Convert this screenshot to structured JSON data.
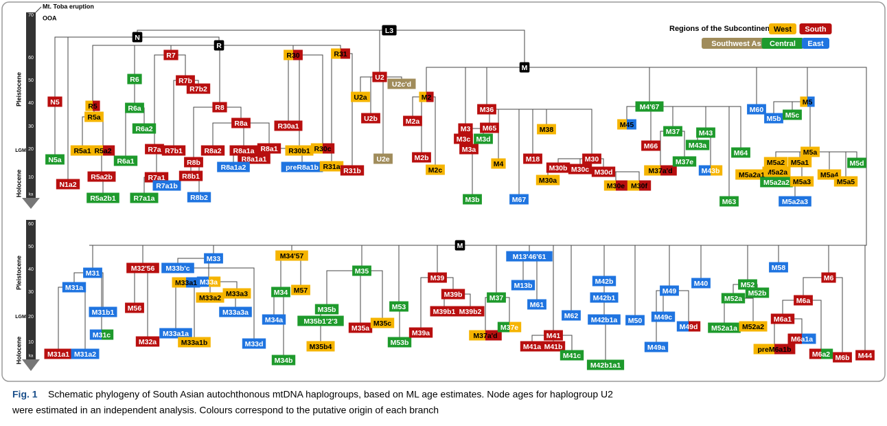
{
  "legend": {
    "title": "Regions of the Subcontinent:",
    "root_color": "#000000",
    "regions": [
      {
        "name": "West",
        "color": "#f5b400",
        "text_color": "#000000"
      },
      {
        "name": "South",
        "color": "#b80f0f",
        "text_color": "#ffffff"
      },
      {
        "name": "Southwest Asia",
        "color": "#a08c5b",
        "text_color": "#ffffff"
      },
      {
        "name": "Central",
        "color": "#1e9a2c",
        "text_color": "#ffffff"
      },
      {
        "name": "East",
        "color": "#1f74e0",
        "text_color": "#ffffff"
      }
    ]
  },
  "axis": {
    "events": [
      "Mt. Toba eruption",
      "OOA"
    ],
    "periods": [
      "Pleistocene",
      "LGM",
      "Holocene"
    ],
    "unit": "ka",
    "top_ticks": [
      70,
      60,
      50,
      40,
      30,
      20,
      10
    ],
    "bottom_ticks": [
      60,
      50,
      40,
      30,
      20,
      10
    ]
  },
  "nodes": [
    {
      "label": "L3",
      "regions": []
    },
    {
      "label": "N",
      "regions": []
    },
    {
      "label": "R",
      "regions": []
    },
    {
      "label": "M",
      "regions": []
    },
    {
      "label": "N5",
      "regions": [
        "South"
      ]
    },
    {
      "label": "N5a",
      "regions": [
        "Central"
      ]
    },
    {
      "label": "N1a2",
      "regions": [
        "South"
      ]
    },
    {
      "label": "R5",
      "regions": [
        "West",
        "South"
      ]
    },
    {
      "label": "R5a",
      "regions": [
        "West"
      ]
    },
    {
      "label": "R5a1",
      "regions": [
        "West"
      ]
    },
    {
      "label": "R5a2",
      "regions": [
        "West",
        "South"
      ]
    },
    {
      "label": "R5a2b",
      "regions": [
        "South"
      ]
    },
    {
      "label": "R5a2b1",
      "regions": [
        "Central"
      ]
    },
    {
      "label": "R6",
      "regions": [
        "Central"
      ]
    },
    {
      "label": "R6a",
      "regions": [
        "Central"
      ]
    },
    {
      "label": "R6a2",
      "regions": [
        "Central"
      ]
    },
    {
      "label": "R6a1",
      "regions": [
        "Central"
      ]
    },
    {
      "label": "R7",
      "regions": [
        "South"
      ]
    },
    {
      "label": "R7b",
      "regions": [
        "South"
      ]
    },
    {
      "label": "R7b2",
      "regions": [
        "South"
      ]
    },
    {
      "label": "R7a",
      "regions": [
        "South"
      ]
    },
    {
      "label": "R7b1",
      "regions": [
        "South"
      ]
    },
    {
      "label": "R7a1",
      "regions": [
        "South"
      ]
    },
    {
      "label": "R7a1b",
      "regions": [
        "East"
      ]
    },
    {
      "label": "R7a1a",
      "regions": [
        "Central"
      ]
    },
    {
      "label": "R8",
      "regions": [
        "South"
      ]
    },
    {
      "label": "R8a",
      "regions": [
        "South"
      ]
    },
    {
      "label": "R8a2",
      "regions": [
        "South"
      ]
    },
    {
      "label": "R8b",
      "regions": [
        "South"
      ]
    },
    {
      "label": "R8b1",
      "regions": [
        "South"
      ]
    },
    {
      "label": "R8b2",
      "regions": [
        "East"
      ]
    },
    {
      "label": "R8a1a",
      "regions": [
        "South"
      ]
    },
    {
      "label": "R8a1a1",
      "regions": [
        "South"
      ]
    },
    {
      "label": "R8a1",
      "regions": [
        "South"
      ]
    },
    {
      "label": "R8a1a2",
      "regions": [
        "East"
      ]
    },
    {
      "label": "preR8a1b",
      "regions": [
        "East"
      ]
    },
    {
      "label": "R30",
      "regions": [
        "West",
        "South"
      ]
    },
    {
      "label": "R30a1",
      "regions": [
        "South"
      ]
    },
    {
      "label": "R30b1",
      "regions": [
        "West"
      ]
    },
    {
      "label": "R30c",
      "regions": [
        "West",
        "South"
      ]
    },
    {
      "label": "R31",
      "regions": [
        "West",
        "South"
      ]
    },
    {
      "label": "R31a",
      "regions": [
        "West"
      ]
    },
    {
      "label": "R31b",
      "regions": [
        "South"
      ]
    },
    {
      "label": "U2",
      "regions": [
        "South"
      ]
    },
    {
      "label": "U2c'd",
      "regions": [
        "Southwest Asia"
      ]
    },
    {
      "label": "U2a",
      "regions": [
        "West"
      ]
    },
    {
      "label": "U2b",
      "regions": [
        "South"
      ]
    },
    {
      "label": "U2e",
      "regions": [
        "Southwest Asia"
      ]
    },
    {
      "label": "M2",
      "regions": [
        "West",
        "South"
      ]
    },
    {
      "label": "M2a",
      "regions": [
        "South"
      ]
    },
    {
      "label": "M2b",
      "regions": [
        "South"
      ]
    },
    {
      "label": "M2c",
      "regions": [
        "West"
      ]
    },
    {
      "label": "M36",
      "regions": [
        "South"
      ]
    },
    {
      "label": "M3",
      "regions": [
        "South"
      ]
    },
    {
      "label": "M3c",
      "regions": [
        "South"
      ]
    },
    {
      "label": "M3d",
      "regions": [
        "Central"
      ]
    },
    {
      "label": "M3a",
      "regions": [
        "South"
      ]
    },
    {
      "label": "M3b",
      "regions": [
        "Central"
      ]
    },
    {
      "label": "M65",
      "regions": [
        "South"
      ]
    },
    {
      "label": "M38",
      "regions": [
        "West"
      ]
    },
    {
      "label": "M4",
      "regions": [
        "West"
      ]
    },
    {
      "label": "M18",
      "regions": [
        "South"
      ]
    },
    {
      "label": "M67",
      "regions": [
        "East"
      ]
    },
    {
      "label": "M30",
      "regions": [
        "South"
      ]
    },
    {
      "label": "M30b",
      "regions": [
        "South"
      ]
    },
    {
      "label": "M30c",
      "regions": [
        "South"
      ]
    },
    {
      "label": "M30d",
      "regions": [
        "South"
      ]
    },
    {
      "label": "M30a",
      "regions": [
        "West"
      ]
    },
    {
      "label": "M30e",
      "regions": [
        "West",
        "South"
      ]
    },
    {
      "label": "M30f",
      "regions": [
        "West",
        "South"
      ]
    },
    {
      "label": "M4'67",
      "regions": [
        "Central"
      ]
    },
    {
      "label": "M45",
      "regions": [
        "West",
        "East"
      ]
    },
    {
      "label": "M37",
      "regions": [
        "Central"
      ]
    },
    {
      "label": "M66",
      "regions": [
        "South"
      ]
    },
    {
      "label": "M37a'd",
      "regions": [
        "West",
        "South"
      ]
    },
    {
      "label": "M37e",
      "regions": [
        "Central"
      ]
    },
    {
      "label": "M43",
      "regions": [
        "Central"
      ]
    },
    {
      "label": "M43a",
      "regions": [
        "Central"
      ]
    },
    {
      "label": "M43b",
      "regions": [
        "East",
        "West"
      ]
    },
    {
      "label": "M64",
      "regions": [
        "Central"
      ]
    },
    {
      "label": "M63",
      "regions": [
        "Central"
      ]
    },
    {
      "label": "M60",
      "regions": [
        "East"
      ]
    },
    {
      "label": "M5",
      "regions": [
        "West",
        "East"
      ]
    },
    {
      "label": "M5b",
      "regions": [
        "East"
      ]
    },
    {
      "label": "M5c",
      "regions": [
        "Central"
      ]
    },
    {
      "label": "M5a",
      "regions": [
        "West"
      ]
    },
    {
      "label": "M5a2",
      "regions": [
        "West"
      ]
    },
    {
      "label": "M5a1",
      "regions": [
        "West"
      ]
    },
    {
      "label": "M5a2a",
      "regions": [
        "West"
      ]
    },
    {
      "label": "M5a2a1",
      "regions": [
        "West"
      ]
    },
    {
      "label": "M5a2a2",
      "regions": [
        "Central"
      ]
    },
    {
      "label": "M5a3",
      "regions": [
        "West"
      ]
    },
    {
      "label": "M5a4",
      "regions": [
        "West"
      ]
    },
    {
      "label": "M5a5",
      "regions": [
        "West"
      ]
    },
    {
      "label": "M5d",
      "regions": [
        "Central"
      ]
    },
    {
      "label": "M5a2a3",
      "regions": [
        "East"
      ]
    },
    {
      "label": "M",
      "regions": []
    },
    {
      "label": "M31",
      "regions": [
        "East"
      ]
    },
    {
      "label": "M31a",
      "regions": [
        "East"
      ]
    },
    {
      "label": "M31b1",
      "regions": [
        "East"
      ]
    },
    {
      "label": "M31c",
      "regions": [
        "East",
        "Central"
      ]
    },
    {
      "label": "M31a1",
      "regions": [
        "South"
      ]
    },
    {
      "label": "M31a2",
      "regions": [
        "East"
      ]
    },
    {
      "label": "M32'56",
      "regions": [
        "South"
      ]
    },
    {
      "label": "M56",
      "regions": [
        "South"
      ]
    },
    {
      "label": "M32a",
      "regions": [
        "South"
      ]
    },
    {
      "label": "M33",
      "regions": [
        "East"
      ]
    },
    {
      "label": "M33b'c",
      "regions": [
        "East"
      ]
    },
    {
      "label": "M33a",
      "regions": [
        "East",
        "West"
      ]
    },
    {
      "label": "M33a1",
      "regions": [
        "West",
        "East"
      ]
    },
    {
      "label": "M33a2",
      "regions": [
        "West"
      ]
    },
    {
      "label": "M33a3",
      "regions": [
        "West"
      ]
    },
    {
      "label": "M33a3a",
      "regions": [
        "East"
      ]
    },
    {
      "label": "M33a1a",
      "regions": [
        "East"
      ]
    },
    {
      "label": "M33a1b",
      "regions": [
        "West"
      ]
    },
    {
      "label": "M33d",
      "regions": [
        "East"
      ]
    },
    {
      "label": "M34'57",
      "regions": [
        "West"
      ]
    },
    {
      "label": "M34",
      "regions": [
        "Central"
      ]
    },
    {
      "label": "M57",
      "regions": [
        "West"
      ]
    },
    {
      "label": "M34a",
      "regions": [
        "East"
      ]
    },
    {
      "label": "M34b",
      "regions": [
        "Central"
      ]
    },
    {
      "label": "M35",
      "regions": [
        "Central"
      ]
    },
    {
      "label": "M35b",
      "regions": [
        "Central"
      ]
    },
    {
      "label": "M35b1'2'3",
      "regions": [
        "Central"
      ]
    },
    {
      "label": "M35b4",
      "regions": [
        "West"
      ]
    },
    {
      "label": "M35a",
      "regions": [
        "South"
      ]
    },
    {
      "label": "M35c",
      "regions": [
        "West"
      ]
    },
    {
      "label": "M53",
      "regions": [
        "Central"
      ]
    },
    {
      "label": "M53b",
      "regions": [
        "Central"
      ]
    },
    {
      "label": "M39",
      "regions": [
        "South"
      ]
    },
    {
      "label": "M39b",
      "regions": [
        "South"
      ]
    },
    {
      "label": "M39b1",
      "regions": [
        "South"
      ]
    },
    {
      "label": "M39b2",
      "regions": [
        "South"
      ]
    },
    {
      "label": "M39a",
      "regions": [
        "South"
      ]
    },
    {
      "label": "M37",
      "regions": [
        "Central"
      ]
    },
    {
      "label": "M37a'd",
      "regions": [
        "West",
        "South"
      ]
    },
    {
      "label": "M37e",
      "regions": [
        "Central",
        "West"
      ]
    },
    {
      "label": "M13'46'61",
      "regions": [
        "East"
      ]
    },
    {
      "label": "M13b",
      "regions": [
        "East"
      ]
    },
    {
      "label": "M61",
      "regions": [
        "East"
      ]
    },
    {
      "label": "M62",
      "regions": [
        "East"
      ]
    },
    {
      "label": "M41",
      "regions": [
        "South"
      ]
    },
    {
      "label": "M41a",
      "regions": [
        "South"
      ]
    },
    {
      "label": "M41b",
      "regions": [
        "South"
      ]
    },
    {
      "label": "M41c",
      "regions": [
        "Central"
      ]
    },
    {
      "label": "M42b",
      "regions": [
        "East"
      ]
    },
    {
      "label": "M42b1",
      "regions": [
        "East"
      ]
    },
    {
      "label": "M42b1a",
      "regions": [
        "East"
      ]
    },
    {
      "label": "M42b1a1",
      "regions": [
        "Central"
      ]
    },
    {
      "label": "M50",
      "regions": [
        "East"
      ]
    },
    {
      "label": "M49",
      "regions": [
        "East"
      ]
    },
    {
      "label": "M49c",
      "regions": [
        "East"
      ]
    },
    {
      "label": "M49d",
      "regions": [
        "East",
        "South"
      ]
    },
    {
      "label": "M49a",
      "regions": [
        "East"
      ]
    },
    {
      "label": "M40",
      "regions": [
        "East"
      ]
    },
    {
      "label": "M52",
      "regions": [
        "Central"
      ]
    },
    {
      "label": "M52b",
      "regions": [
        "Central"
      ]
    },
    {
      "label": "M52a",
      "regions": [
        "Central"
      ]
    },
    {
      "label": "M52a1a",
      "regions": [
        "Central"
      ]
    },
    {
      "label": "M52a2",
      "regions": [
        "West"
      ]
    },
    {
      "label": "M58",
      "regions": [
        "East"
      ]
    },
    {
      "label": "M6",
      "regions": [
        "South"
      ]
    },
    {
      "label": "M6a",
      "regions": [
        "South"
      ]
    },
    {
      "label": "M6a1",
      "regions": [
        "South"
      ]
    },
    {
      "label": "M6a1a",
      "regions": [
        "South",
        "East"
      ]
    },
    {
      "label": "preM6a1b",
      "regions": [
        "West",
        "South"
      ]
    },
    {
      "label": "M6a2",
      "regions": [
        "South",
        "Central"
      ]
    },
    {
      "label": "M6b",
      "regions": [
        "South"
      ]
    },
    {
      "label": "M44",
      "regions": [
        "South"
      ]
    }
  ],
  "caption": {
    "label": "Fig. 1",
    "lines": [
      "Schematic phylogeny of South Asian autochthonous mtDNA haplogroups, based on ML age estimates. Node ages for haplogroup U2",
      "were estimated in an independent analysis. Colours correspond to the putative origin of each branch"
    ]
  }
}
